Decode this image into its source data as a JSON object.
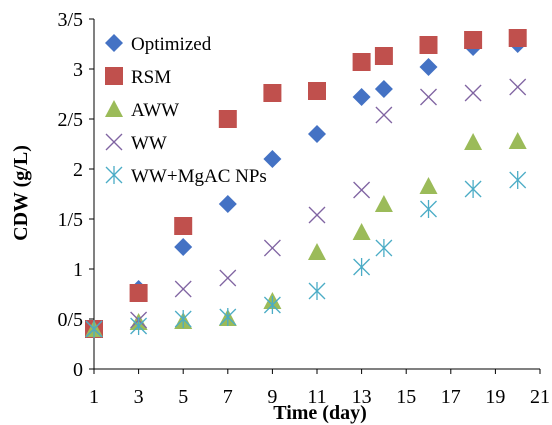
{
  "chart_data": {
    "type": "scatter",
    "title": "",
    "xlabel": "Time (day)",
    "ylabel": "CDW (g/L)",
    "xlim": [
      1,
      21
    ],
    "ylim": [
      0,
      3.5
    ],
    "x_ticks": [
      1,
      3,
      5,
      7,
      9,
      11,
      13,
      15,
      17,
      19,
      21
    ],
    "x_tick_labels": [
      "1",
      "3",
      "5",
      "7",
      "9",
      "11",
      "13",
      "15",
      "17",
      "19",
      "21"
    ],
    "y_ticks": [
      0,
      0.5,
      1,
      1.5,
      2,
      2.5,
      3,
      3.5
    ],
    "y_tick_labels": [
      "0",
      "0/5",
      "1",
      "1/5",
      "2",
      "2/5",
      "3",
      "3/5"
    ],
    "grid": false,
    "legend_position": "top-left",
    "series": [
      {
        "name": "Optimized",
        "marker": "diamond",
        "color": "#4472C4",
        "points": [
          [
            1,
            0.4
          ],
          [
            3,
            0.8
          ],
          [
            5,
            1.22
          ],
          [
            7,
            1.65
          ],
          [
            9,
            2.1
          ],
          [
            11,
            2.35
          ],
          [
            13,
            2.72
          ],
          [
            14,
            2.8
          ],
          [
            16,
            3.02
          ],
          [
            18,
            3.22
          ],
          [
            20,
            3.25
          ]
        ]
      },
      {
        "name": "RSM",
        "marker": "square",
        "color": "#C0504D",
        "points": [
          [
            1,
            0.4
          ],
          [
            3,
            0.76
          ],
          [
            5,
            1.43
          ],
          [
            7,
            2.5
          ],
          [
            9,
            2.76
          ],
          [
            11,
            2.78
          ],
          [
            13,
            3.07
          ],
          [
            14,
            3.13
          ],
          [
            16,
            3.24
          ],
          [
            18,
            3.29
          ],
          [
            20,
            3.31
          ]
        ]
      },
      {
        "name": "AWW",
        "marker": "triangle",
        "color": "#9BBB59",
        "points": [
          [
            1,
            0.4
          ],
          [
            3,
            0.47
          ],
          [
            5,
            0.48
          ],
          [
            7,
            0.51
          ],
          [
            9,
            0.68
          ],
          [
            11,
            1.17
          ],
          [
            13,
            1.37
          ],
          [
            14,
            1.65
          ],
          [
            16,
            1.83
          ],
          [
            18,
            2.27
          ],
          [
            20,
            2.28
          ]
        ]
      },
      {
        "name": "WW",
        "marker": "x",
        "color": "#8064A2",
        "points": [
          [
            1,
            0.4
          ],
          [
            3,
            0.49
          ],
          [
            5,
            0.8
          ],
          [
            7,
            0.91
          ],
          [
            9,
            1.21
          ],
          [
            11,
            1.54
          ],
          [
            13,
            1.79
          ],
          [
            14,
            2.54
          ],
          [
            16,
            2.72
          ],
          [
            18,
            2.76
          ],
          [
            20,
            2.82
          ]
        ]
      },
      {
        "name": "WW+MgAC NPs",
        "marker": "asterisk",
        "color": "#4BACC6",
        "points": [
          [
            1,
            0.4
          ],
          [
            3,
            0.43
          ],
          [
            5,
            0.5
          ],
          [
            7,
            0.52
          ],
          [
            9,
            0.64
          ],
          [
            11,
            0.78
          ],
          [
            13,
            1.02
          ],
          [
            14,
            1.21
          ],
          [
            16,
            1.6
          ],
          [
            18,
            1.8
          ],
          [
            20,
            1.89
          ]
        ]
      }
    ]
  }
}
